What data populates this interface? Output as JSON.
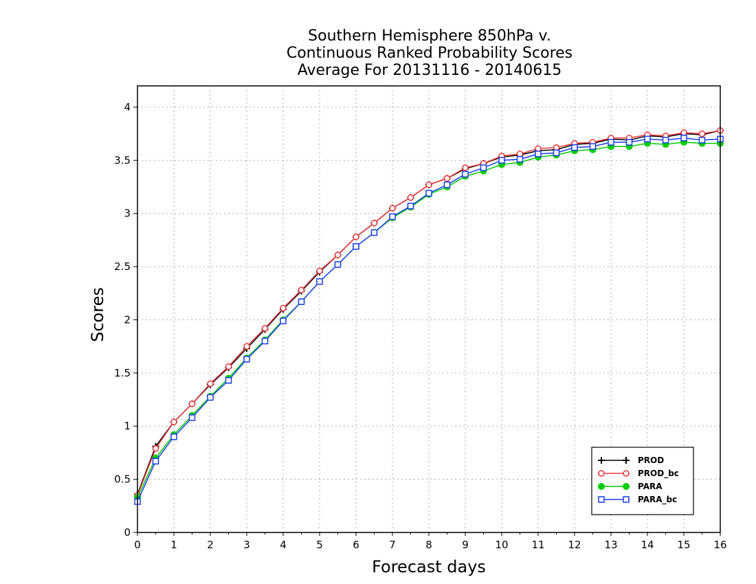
{
  "chart_data": {
    "type": "line",
    "title_lines": [
      "Southern Hemisphere 850hPa v.",
      "Continuous Ranked Probability Scores",
      "Average For 20131116 - 20140615"
    ],
    "xlabel": "Forecast days",
    "ylabel": "Scores",
    "xlim": [
      0,
      16
    ],
    "ylim": [
      0,
      4.2
    ],
    "x_ticks": [
      "0",
      "1",
      "2",
      "3",
      "4",
      "5",
      "6",
      "7",
      "8",
      "9",
      "10",
      "11",
      "12",
      "13",
      "14",
      "15",
      "16"
    ],
    "y_ticks": [
      "0",
      "0.5",
      "1",
      "1.5",
      "2",
      "2.5",
      "3",
      "3.5",
      "4"
    ],
    "grid": true,
    "legend_position": "bottom-right",
    "x": [
      0,
      0.5,
      1,
      1.5,
      2,
      2.5,
      3,
      3.5,
      4,
      4.5,
      5,
      5.5,
      6,
      6.5,
      7,
      7.5,
      8,
      8.5,
      9,
      9.5,
      10,
      10.5,
      11,
      11.5,
      12,
      12.5,
      13,
      13.5,
      14,
      14.5,
      15,
      15.5,
      16
    ],
    "series": [
      {
        "name": "PROD",
        "color": "#000000",
        "marker": "plus",
        "values": [
          0.36,
          0.81,
          1.04,
          1.21,
          1.39,
          1.55,
          1.73,
          1.91,
          2.1,
          2.27,
          2.45,
          2.61,
          2.78,
          2.91,
          3.05,
          3.15,
          3.27,
          3.33,
          3.42,
          3.47,
          3.53,
          3.55,
          3.59,
          3.6,
          3.65,
          3.66,
          3.7,
          3.69,
          3.73,
          3.72,
          3.75,
          3.74,
          3.78
        ]
      },
      {
        "name": "PROD_bc",
        "color": "#e8363a",
        "marker": "circle",
        "values": [
          0.35,
          0.79,
          1.04,
          1.21,
          1.4,
          1.56,
          1.75,
          1.92,
          2.11,
          2.28,
          2.46,
          2.61,
          2.78,
          2.91,
          3.05,
          3.15,
          3.27,
          3.33,
          3.43,
          3.47,
          3.54,
          3.56,
          3.61,
          3.62,
          3.66,
          3.67,
          3.71,
          3.71,
          3.74,
          3.73,
          3.76,
          3.75,
          3.78
        ]
      },
      {
        "name": "PARA",
        "color": "#00cc00",
        "marker": "dot",
        "values": [
          0.33,
          0.7,
          0.92,
          1.1,
          1.28,
          1.45,
          1.64,
          1.81,
          2.0,
          2.17,
          2.36,
          2.52,
          2.69,
          2.82,
          2.96,
          3.06,
          3.18,
          3.25,
          3.35,
          3.4,
          3.46,
          3.48,
          3.53,
          3.55,
          3.59,
          3.6,
          3.63,
          3.63,
          3.66,
          3.65,
          3.67,
          3.66,
          3.66
        ]
      },
      {
        "name": "PARA_bc",
        "color": "#1a3cf0",
        "marker": "square",
        "values": [
          0.29,
          0.67,
          0.9,
          1.08,
          1.27,
          1.43,
          1.63,
          1.8,
          1.99,
          2.17,
          2.36,
          2.52,
          2.69,
          2.82,
          2.97,
          3.07,
          3.19,
          3.27,
          3.37,
          3.43,
          3.5,
          3.51,
          3.56,
          3.57,
          3.62,
          3.63,
          3.67,
          3.67,
          3.7,
          3.69,
          3.71,
          3.69,
          3.7
        ]
      }
    ]
  }
}
